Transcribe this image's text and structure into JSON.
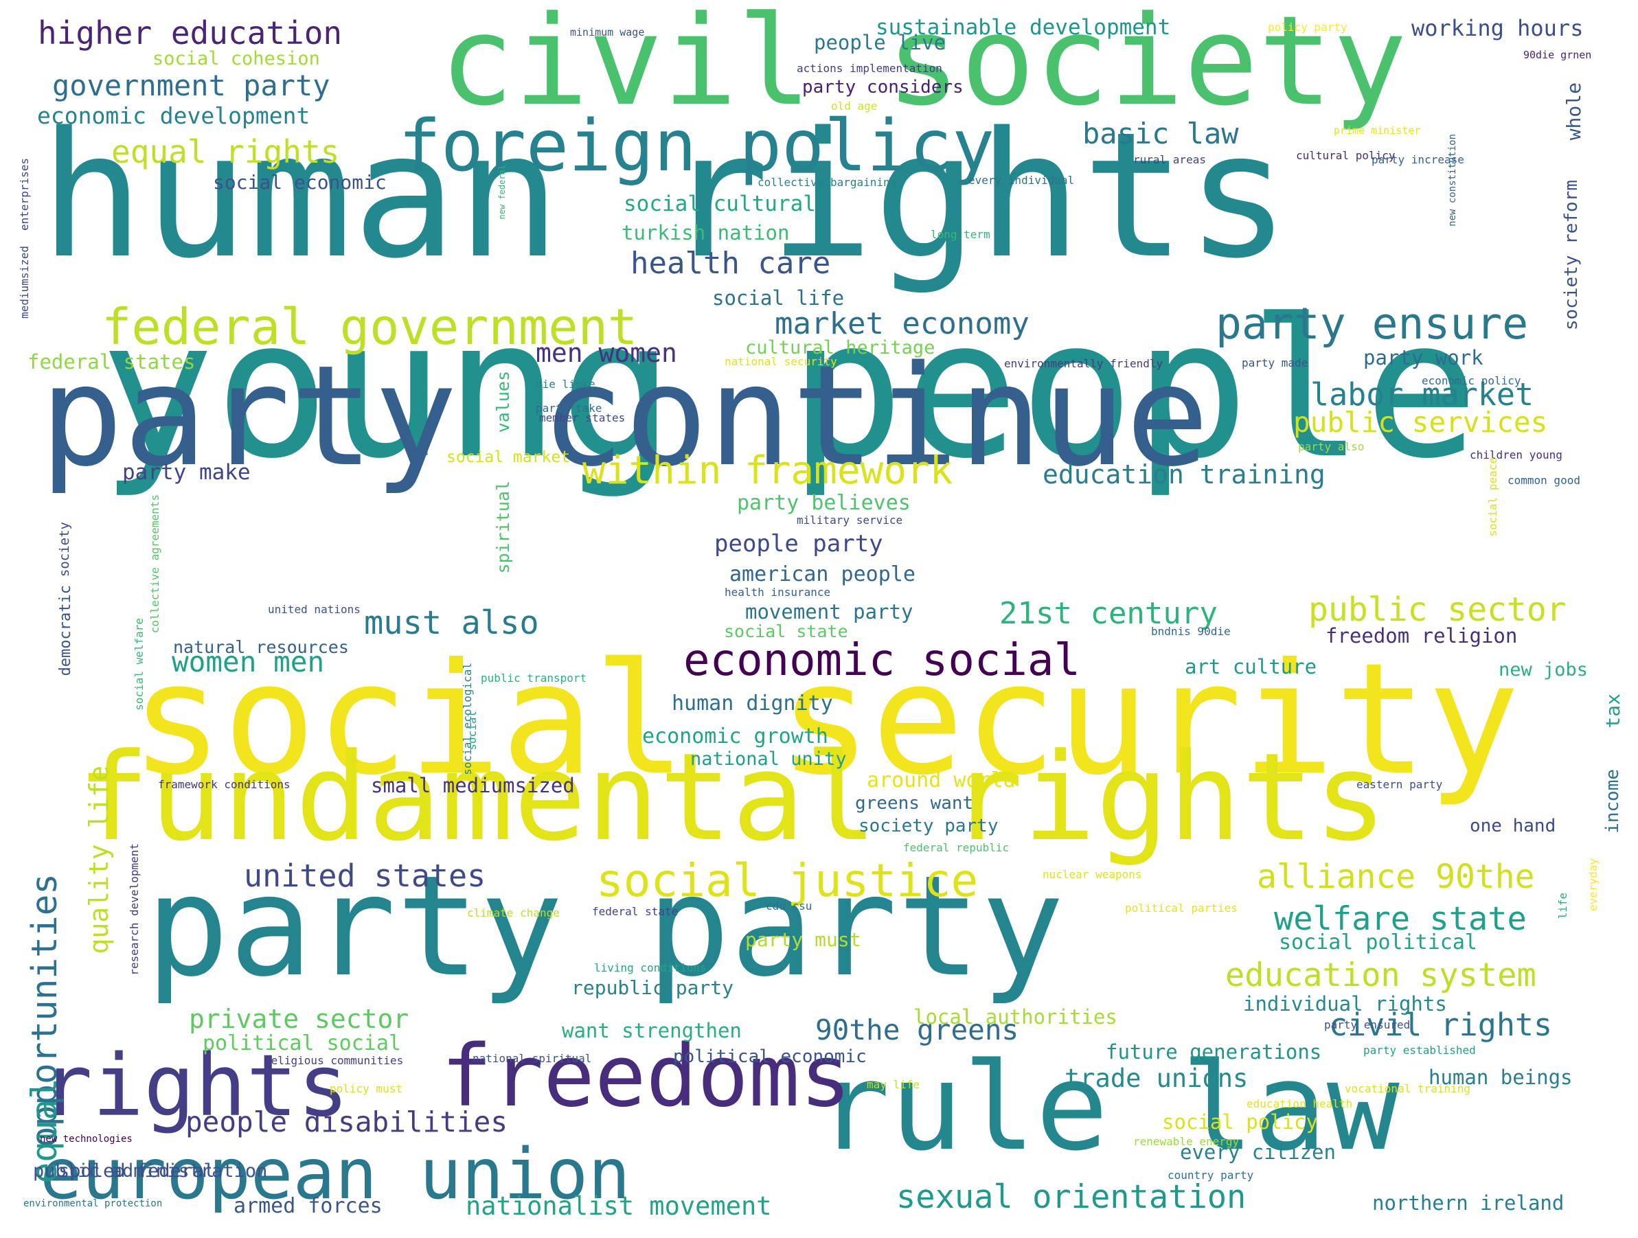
{
  "palette": [
    "#440154",
    "#482878",
    "#3e4989",
    "#31688e",
    "#26828e",
    "#1f9e89",
    "#35b779",
    "#6ece58",
    "#b5de2b",
    "#fde725"
  ],
  "words": [
    {
      "t": "human rights",
      "c": "#23898e"
    },
    {
      "t": "young people",
      "c": "#22908c"
    },
    {
      "t": "social security",
      "c": "#f2e51d"
    },
    {
      "t": "party continue",
      "c": "#355f8d"
    },
    {
      "t": "civil society",
      "c": "#4ac16d"
    },
    {
      "t": "party party",
      "c": "#25858e"
    },
    {
      "t": "fundamental rights",
      "c": "#e2e418"
    },
    {
      "t": "rule law",
      "c": "#24878e"
    },
    {
      "t": "freedoms",
      "c": "#472d7b"
    },
    {
      "t": "rights",
      "c": "#433e85"
    },
    {
      "t": "european union",
      "c": "#2a788e"
    },
    {
      "t": "foreign policy",
      "c": "#26828e"
    },
    {
      "t": "federal government",
      "c": "#bddf26"
    },
    {
      "t": "social justice",
      "c": "#dde318"
    },
    {
      "t": "economic social",
      "c": "#440154"
    },
    {
      "t": "party ensure",
      "c": "#2a788e"
    },
    {
      "t": "opportunities",
      "c": "#2c728e"
    },
    {
      "t": "equal",
      "c": "#1f988b"
    },
    {
      "t": "within framework",
      "c": "#dae319"
    },
    {
      "t": "welfare state",
      "c": "#1fa088"
    },
    {
      "t": "education system",
      "c": "#bddf26"
    },
    {
      "t": "alliance 90the",
      "c": "#d0e11c"
    },
    {
      "t": "public sector",
      "c": "#c8e020"
    },
    {
      "t": "public services",
      "c": "#d5e21a"
    },
    {
      "t": "labor market",
      "c": "#26818e"
    },
    {
      "t": "civil rights",
      "c": "#2a768e"
    },
    {
      "t": "sexual orientation",
      "c": "#1f9a8a"
    },
    {
      "t": "nationalist movement",
      "c": "#20a386"
    },
    {
      "t": "united states",
      "c": "#3e4a89"
    },
    {
      "t": "people disabilities",
      "c": "#433d84"
    },
    {
      "t": "90the greens",
      "c": "#2f6c8e"
    },
    {
      "t": "higher education",
      "c": "#482576"
    },
    {
      "t": "government party",
      "c": "#2e6f8e"
    },
    {
      "t": "equal rights",
      "c": "#c0df25"
    },
    {
      "t": "market economy",
      "c": "#2d708e"
    },
    {
      "t": "health care",
      "c": "#3a548c"
    },
    {
      "t": "basic law",
      "c": "#2a788e"
    },
    {
      "t": "21st century",
      "c": "#2eb37c"
    },
    {
      "t": "must also",
      "c": "#287c8e"
    },
    {
      "t": "women men",
      "c": "#1fa187"
    },
    {
      "t": "quality life",
      "c": "#bddf26"
    },
    {
      "t": "men women",
      "c": "#46327e"
    },
    {
      "t": "education training",
      "c": "#287d8e"
    },
    {
      "t": "trade unions",
      "c": "#238a8d"
    },
    {
      "t": "private sector",
      "c": "#5ec962"
    },
    {
      "t": "economic development",
      "c": "#26828e"
    },
    {
      "t": "social cohesion",
      "c": "#a2da37"
    },
    {
      "t": "social economic",
      "c": "#3b528b"
    },
    {
      "t": "people party",
      "c": "#3e4989"
    },
    {
      "t": "american people",
      "c": "#31668e"
    },
    {
      "t": "party make",
      "c": "#414487"
    },
    {
      "t": "party believes",
      "c": "#4ec36b"
    },
    {
      "t": "movement party",
      "c": "#2b748e"
    },
    {
      "t": "human dignity",
      "c": "#2d708e"
    },
    {
      "t": "economic growth",
      "c": "#20a486"
    },
    {
      "t": "national unity",
      "c": "#1f9e89"
    },
    {
      "t": "small mediumsized",
      "c": "#46337f"
    },
    {
      "t": "social cultural",
      "c": "#22a884"
    },
    {
      "t": "turkish nation",
      "c": "#3bbb75"
    },
    {
      "t": "social life",
      "c": "#2c718e"
    },
    {
      "t": "cultural heritage",
      "c": "#75d054"
    },
    {
      "t": "people live",
      "c": "#29798e"
    },
    {
      "t": "sustainable development",
      "c": "#1f968b"
    },
    {
      "t": "working hours",
      "c": "#3c4f8a"
    },
    {
      "t": "party considers",
      "c": "#482173"
    },
    {
      "t": "party work",
      "c": "#2f6b8e"
    },
    {
      "t": "freedom religion",
      "c": "#46307e"
    },
    {
      "t": "art culture",
      "c": "#1f9a8a"
    },
    {
      "t": "new jobs",
      "c": "#2ab07f"
    },
    {
      "t": "around world",
      "c": "#e5e419"
    },
    {
      "t": "greens want",
      "c": "#31688e"
    },
    {
      "t": "society party",
      "c": "#29798e"
    },
    {
      "t": "one hand",
      "c": "#3e4a89"
    },
    {
      "t": "local authorities",
      "c": "#a8db34"
    },
    {
      "t": "want strengthen",
      "c": "#28ae80"
    },
    {
      "t": "future generations",
      "c": "#1f948c"
    },
    {
      "t": "individual rights",
      "c": "#23898e"
    },
    {
      "t": "social political",
      "c": "#1fa287"
    },
    {
      "t": "human beings",
      "c": "#277f8e"
    },
    {
      "t": "social policy",
      "c": "#d8e219"
    },
    {
      "t": "every citizen",
      "c": "#26828e"
    },
    {
      "t": "northern ireland",
      "c": "#287d8e"
    },
    {
      "t": "armed forces",
      "c": "#39568c"
    },
    {
      "t": "republic party",
      "c": "#26828e"
    },
    {
      "t": "party must",
      "c": "#b2dd2d"
    },
    {
      "t": "political economic",
      "c": "#3a548c"
    },
    {
      "t": "political social",
      "c": "#60ca60"
    },
    {
      "t": "spdled federal",
      "c": "#3d4d8a"
    },
    {
      "t": "public administration",
      "c": "#3b528b"
    },
    {
      "t": "federal states",
      "c": "#90d743"
    },
    {
      "t": "natural resources",
      "c": "#355f8d"
    },
    {
      "t": "social market",
      "c": "#d2e21b"
    },
    {
      "t": "social state",
      "c": "#5ec962"
    },
    {
      "t": "values",
      "c": "#38b977"
    },
    {
      "t": "spiritual",
      "c": "#4cc26c"
    },
    {
      "t": "society",
      "c": "#3e4a89"
    },
    {
      "t": "democratic",
      "c": "#3a538b"
    },
    {
      "t": "whole",
      "c": "#39568c"
    },
    {
      "t": "society reform",
      "c": "#3b528b"
    },
    {
      "t": "tax",
      "c": "#1fa088"
    },
    {
      "t": "income",
      "c": "#2c728e"
    },
    {
      "t": "minimum wage",
      "c": "#3b528b"
    },
    {
      "t": "policy party",
      "c": "#fde725"
    },
    {
      "t": "actions implementation",
      "c": "#433e85"
    },
    {
      "t": "old age",
      "c": "#d2e21b"
    },
    {
      "t": "90die grnen",
      "c": "#482475"
    },
    {
      "t": "prime minister",
      "c": "#e7e419"
    },
    {
      "t": "rural areas",
      "c": "#414487"
    },
    {
      "t": "cultural policy",
      "c": "#472c7a"
    },
    {
      "t": "party increase",
      "c": "#33638d"
    },
    {
      "t": "collective bargaining",
      "c": "#25838e"
    },
    {
      "t": "every individual",
      "c": "#2d708e"
    },
    {
      "t": "long term",
      "c": "#35b779"
    },
    {
      "t": "new constitution",
      "c": "#33638d"
    },
    {
      "t": "new federal",
      "c": "#32b67a"
    },
    {
      "t": "national security",
      "c": "#e2e418"
    },
    {
      "t": "environmentally friendly",
      "c": "#443a83"
    },
    {
      "t": "party made",
      "c": "#3b528b"
    },
    {
      "t": "economic policy",
      "c": "#2e6e8e"
    },
    {
      "t": "die linke",
      "c": "#27808e"
    },
    {
      "t": "party take",
      "c": "#2e6d8e"
    },
    {
      "t": "member states",
      "c": "#3e4a89"
    },
    {
      "t": "party also",
      "c": "#a0da39"
    },
    {
      "t": "children young",
      "c": "#472f7d"
    },
    {
      "t": "common good",
      "c": "#33638d"
    },
    {
      "t": "social peace",
      "c": "#dae319"
    },
    {
      "t": "military service",
      "c": "#3e4989"
    },
    {
      "t": "health insurance",
      "c": "#355e8d"
    },
    {
      "t": "united nations",
      "c": "#3b528b"
    },
    {
      "t": "public transport",
      "c": "#2ab07f"
    },
    {
      "t": "bndnis 90die",
      "c": "#31688e"
    },
    {
      "t": "framework conditions",
      "c": "#453581"
    },
    {
      "t": "eastern party",
      "c": "#3d4e8a"
    },
    {
      "t": "federal republic",
      "c": "#4cc26c"
    },
    {
      "t": "nuclear weapons",
      "c": "#dde318"
    },
    {
      "t": "climate change",
      "c": "#bade28"
    },
    {
      "t": "federal state",
      "c": "#414487"
    },
    {
      "t": "cdu csu",
      "c": "#2e6e8e"
    },
    {
      "t": "political parties",
      "c": "#e5e419"
    },
    {
      "t": "living conditions",
      "c": "#22a785"
    },
    {
      "t": "religious communities",
      "c": "#433e85"
    },
    {
      "t": "national spiritual",
      "c": "#3b528b"
    },
    {
      "t": "policy must",
      "c": "#dae319"
    },
    {
      "t": "may life",
      "c": "#c2df23"
    },
    {
      "t": "vocational training",
      "c": "#dde318"
    },
    {
      "t": "education health",
      "c": "#e2e418"
    },
    {
      "t": "renewable energy",
      "c": "#9fda3a"
    },
    {
      "t": "country party",
      "c": "#2d708e"
    },
    {
      "t": "party ensured",
      "c": "#3b528b"
    },
    {
      "t": "party established",
      "c": "#1fa187"
    },
    {
      "t": "new technologies",
      "c": "#440154"
    },
    {
      "t": "environmental protection",
      "c": "#2a768e"
    },
    {
      "t": "enterprises",
      "c": "#404688"
    },
    {
      "t": "mediumsized",
      "c": "#3e4989"
    },
    {
      "t": "collective agreements",
      "c": "#52c569"
    },
    {
      "t": "social welfare",
      "c": "#37b878"
    },
    {
      "t": "social ecological",
      "c": "#26828e"
    },
    {
      "t": "social",
      "c": "#20a386"
    },
    {
      "t": "research development",
      "c": "#443983"
    },
    {
      "t": "life",
      "c": "#27ad81"
    },
    {
      "t": "everyday",
      "c": "#fde725"
    }
  ]
}
